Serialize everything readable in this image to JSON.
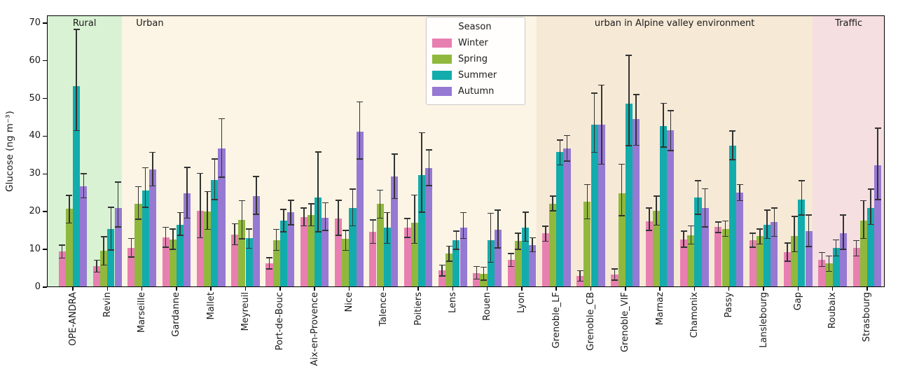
{
  "chart_data": {
    "type": "bar",
    "title": "",
    "xlabel": "",
    "ylabel": "Glucose (ng m⁻³)",
    "ylim": [
      0,
      72
    ],
    "yticks": [
      0,
      10,
      20,
      30,
      40,
      50,
      60,
      70
    ],
    "grid": false,
    "legend": {
      "title": "Season",
      "position": "upper-center-left"
    },
    "error_bar_color": "#333333",
    "categories": [
      "OPE-ANDRA",
      "Revin",
      "Marseille",
      "Gardanne",
      "Mallet",
      "Meyreuil",
      "Port-de-Bouc",
      "Aix-en-Provence",
      "Nice",
      "Talence",
      "Poitiers",
      "Lens",
      "Rouen",
      "Lyon",
      "Grenoble_LF",
      "Grenoble_CB",
      "Grenoble_VIF",
      "Marnaz",
      "Chamonix",
      "Passy",
      "Lanslebourg",
      "Gap",
      "Roubaix",
      "Strasbourg"
    ],
    "regions": [
      {
        "label": "Rural",
        "color": "#d9f2d4",
        "from": 0,
        "to": 1
      },
      {
        "label": "Urban",
        "color": "#fcf4e4",
        "from": 2,
        "to": 13,
        "label_align": "left"
      },
      {
        "label": "urban in Alpine valley environment",
        "color": "#f6e9d6",
        "from": 14,
        "to": 21
      },
      {
        "label": "Traffic",
        "color": "#f5dfe0",
        "from": 22,
        "to": 23
      }
    ],
    "series": [
      {
        "name": "Winter",
        "color": "#e87fb1",
        "values": [
          9.5,
          5.5,
          10.4,
          13.2,
          20.3,
          14.0,
          6.3,
          18.6,
          18.1,
          14.7,
          15.7,
          4.4,
          3.8,
          7.2,
          14.2,
          3.0,
          3.4,
          17.5,
          12.7,
          15.9,
          12.5,
          9.2,
          7.3,
          10.3
        ],
        "err_lo": [
          7.7,
          4.0,
          8.0,
          10.6,
          13.1,
          11.2,
          4.8,
          16.2,
          13.7,
          11.6,
          13.2,
          3.0,
          2.1,
          5.5,
          12.2,
          1.6,
          1.9,
          15.0,
          10.6,
          14.5,
          10.6,
          6.9,
          5.5,
          8.3
        ],
        "err_hi": [
          11.1,
          7.1,
          12.9,
          15.9,
          30.2,
          16.8,
          7.8,
          21.0,
          23.0,
          17.8,
          18.2,
          5.8,
          5.5,
          8.9,
          16.1,
          4.4,
          4.8,
          21.0,
          14.8,
          17.3,
          14.3,
          11.7,
          9.2,
          12.3
        ]
      },
      {
        "name": "Spring",
        "color": "#90b83d",
        "values": [
          20.8,
          9.6,
          22.1,
          12.7,
          20.1,
          17.8,
          12.5,
          19.2,
          12.8,
          22.0,
          17.0,
          8.9,
          3.6,
          12.2,
          22.1,
          22.6,
          24.9,
          20.2,
          13.7,
          15.4,
          13.5,
          13.5,
          6.3,
          17.6
        ],
        "err_lo": [
          17.0,
          5.8,
          18.0,
          10.0,
          15.3,
          12.8,
          9.7,
          16.2,
          9.7,
          18.3,
          11.6,
          6.9,
          1.9,
          10.0,
          20.2,
          18.1,
          18.9,
          16.4,
          11.4,
          13.5,
          11.4,
          9.4,
          4.2,
          12.9
        ],
        "err_hi": [
          24.3,
          13.4,
          26.6,
          15.4,
          25.3,
          22.9,
          15.3,
          22.1,
          15.0,
          25.7,
          24.4,
          10.9,
          5.3,
          14.3,
          24.1,
          27.2,
          32.6,
          24.1,
          16.2,
          17.5,
          15.4,
          18.7,
          8.3,
          22.9
        ]
      },
      {
        "name": "Summer",
        "color": "#12acac",
        "values": [
          53.2,
          15.4,
          25.7,
          16.6,
          28.4,
          12.9,
          17.6,
          23.7,
          21.0,
          15.7,
          29.6,
          12.4,
          12.5,
          15.7,
          35.9,
          43.1,
          48.7,
          42.6,
          23.7,
          37.5,
          16.6,
          23.2,
          10.4,
          21.0
        ],
        "err_lo": [
          41.5,
          9.8,
          21.2,
          13.7,
          23.2,
          10.3,
          14.7,
          14.7,
          16.2,
          11.6,
          19.9,
          10.0,
          6.6,
          12.2,
          32.4,
          35.7,
          37.5,
          37.1,
          19.3,
          33.8,
          12.9,
          19.1,
          8.3,
          16.6
        ],
        "err_hi": [
          68.3,
          21.2,
          31.6,
          19.8,
          34.0,
          15.4,
          20.6,
          35.8,
          26.0,
          19.8,
          40.9,
          14.8,
          19.6,
          19.9,
          39.0,
          51.4,
          61.4,
          48.7,
          28.2,
          41.4,
          20.4,
          28.2,
          12.5,
          26.0
        ]
      },
      {
        "name": "Autumn",
        "color": "#9679d3",
        "values": [
          26.8,
          21.0,
          31.1,
          24.8,
          36.7,
          24.1,
          19.9,
          18.4,
          41.2,
          29.4,
          31.6,
          15.8,
          15.3,
          11.2,
          36.7,
          43.1,
          44.6,
          41.5,
          20.9,
          25.1,
          17.3,
          14.8,
          14.3,
          32.2
        ],
        "err_lo": [
          23.7,
          16.0,
          26.8,
          18.3,
          29.1,
          19.3,
          16.5,
          15.0,
          34.0,
          23.5,
          26.9,
          12.9,
          10.4,
          9.4,
          33.4,
          32.6,
          37.6,
          36.2,
          16.0,
          22.9,
          13.5,
          10.8,
          10.0,
          23.2
        ],
        "err_hi": [
          30.1,
          27.8,
          35.7,
          31.7,
          44.6,
          29.3,
          23.0,
          22.4,
          49.1,
          35.3,
          36.4,
          19.8,
          20.4,
          13.1,
          40.2,
          53.5,
          51.0,
          46.8,
          26.1,
          27.2,
          21.0,
          19.1,
          19.1,
          42.1
        ]
      }
    ]
  }
}
